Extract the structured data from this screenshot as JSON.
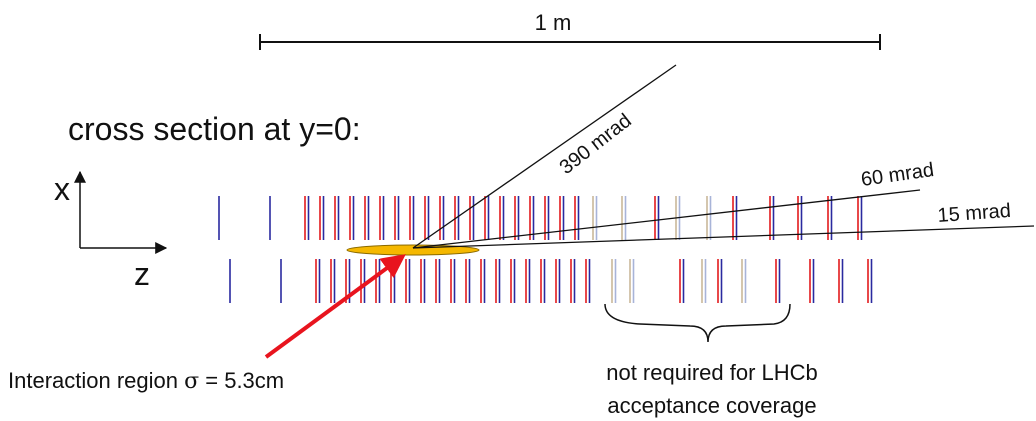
{
  "scale_bar": {
    "label": "1 m"
  },
  "heading": "cross section at y=0:",
  "axes": {
    "x_label": "x",
    "z_label": "z"
  },
  "angles": [
    {
      "label": "390 mrad"
    },
    {
      "label": "60 mrad"
    },
    {
      "label": "15 mrad"
    }
  ],
  "interaction_region": {
    "label_prefix": "Interaction region ",
    "sigma_symbol": "σ",
    "label_suffix": " =  5.3cm"
  },
  "not_required_note": {
    "line1": "not required for LHCb",
    "line2": "acceptance coverage"
  },
  "colors": {
    "module_red": "#e31a1c",
    "module_blue": "#2a2aa0",
    "module_pale": "#c9b89a",
    "module_pale_blue": "#a8b4d8",
    "interaction_fill": "#f5b800",
    "arrow": "#e8141e",
    "line": "#111111"
  }
}
